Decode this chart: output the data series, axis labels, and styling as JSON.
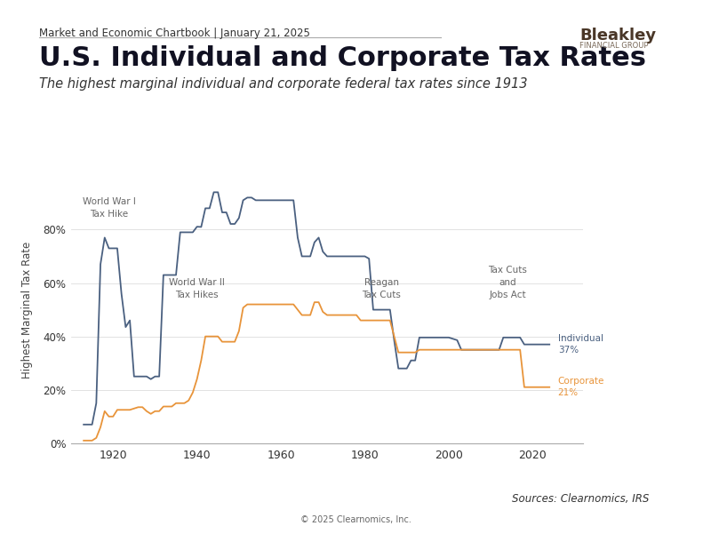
{
  "title": "U.S. Individual and Corporate Tax Rates",
  "subtitle": "The highest marginal individual and corporate federal tax rates since 1913",
  "header": "Market and Economic Chartbook | January 21, 2025",
  "footer_source": "Sources: Clearnomics, IRS",
  "footer_copy": "© 2025 Clearnomics, Inc.",
  "ylabel": "Highest Marginal Tax Rate",
  "individual_color": "#4a6080",
  "corporate_color": "#e8943a",
  "background_color": "#ffffff",
  "individual_data": [
    [
      1913,
      7
    ],
    [
      1914,
      7
    ],
    [
      1915,
      7
    ],
    [
      1916,
      15
    ],
    [
      1917,
      67
    ],
    [
      1918,
      77
    ],
    [
      1919,
      73
    ],
    [
      1920,
      73
    ],
    [
      1921,
      73
    ],
    [
      1922,
      56
    ],
    [
      1923,
      43.5
    ],
    [
      1924,
      46
    ],
    [
      1925,
      25
    ],
    [
      1926,
      25
    ],
    [
      1927,
      25
    ],
    [
      1928,
      25
    ],
    [
      1929,
      24
    ],
    [
      1930,
      25
    ],
    [
      1931,
      25
    ],
    [
      1932,
      63
    ],
    [
      1933,
      63
    ],
    [
      1934,
      63
    ],
    [
      1935,
      63
    ],
    [
      1936,
      79
    ],
    [
      1937,
      79
    ],
    [
      1938,
      79
    ],
    [
      1939,
      79
    ],
    [
      1940,
      81.1
    ],
    [
      1941,
      81
    ],
    [
      1942,
      88
    ],
    [
      1943,
      88
    ],
    [
      1944,
      94
    ],
    [
      1945,
      94
    ],
    [
      1946,
      86.45
    ],
    [
      1947,
      86.45
    ],
    [
      1948,
      82.13
    ],
    [
      1949,
      82.13
    ],
    [
      1950,
      84.36
    ],
    [
      1951,
      91
    ],
    [
      1952,
      92
    ],
    [
      1953,
      92
    ],
    [
      1954,
      91
    ],
    [
      1955,
      91
    ],
    [
      1956,
      91
    ],
    [
      1957,
      91
    ],
    [
      1958,
      91
    ],
    [
      1959,
      91
    ],
    [
      1960,
      91
    ],
    [
      1961,
      91
    ],
    [
      1962,
      91
    ],
    [
      1963,
      91
    ],
    [
      1964,
      77
    ],
    [
      1965,
      70
    ],
    [
      1966,
      70
    ],
    [
      1967,
      70
    ],
    [
      1968,
      75.25
    ],
    [
      1969,
      77
    ],
    [
      1970,
      71.75
    ],
    [
      1971,
      70
    ],
    [
      1972,
      70
    ],
    [
      1973,
      70
    ],
    [
      1974,
      70
    ],
    [
      1975,
      70
    ],
    [
      1976,
      70
    ],
    [
      1977,
      70
    ],
    [
      1978,
      70
    ],
    [
      1979,
      70
    ],
    [
      1980,
      70
    ],
    [
      1981,
      69.125
    ],
    [
      1982,
      50
    ],
    [
      1983,
      50
    ],
    [
      1984,
      50
    ],
    [
      1985,
      50
    ],
    [
      1986,
      50
    ],
    [
      1987,
      38.5
    ],
    [
      1988,
      28
    ],
    [
      1989,
      28
    ],
    [
      1990,
      28
    ],
    [
      1991,
      31
    ],
    [
      1992,
      31
    ],
    [
      1993,
      39.6
    ],
    [
      1994,
      39.6
    ],
    [
      1995,
      39.6
    ],
    [
      1996,
      39.6
    ],
    [
      1997,
      39.6
    ],
    [
      1998,
      39.6
    ],
    [
      1999,
      39.6
    ],
    [
      2000,
      39.6
    ],
    [
      2001,
      39.1
    ],
    [
      2002,
      38.6
    ],
    [
      2003,
      35
    ],
    [
      2004,
      35
    ],
    [
      2005,
      35
    ],
    [
      2006,
      35
    ],
    [
      2007,
      35
    ],
    [
      2008,
      35
    ],
    [
      2009,
      35
    ],
    [
      2010,
      35
    ],
    [
      2011,
      35
    ],
    [
      2012,
      35
    ],
    [
      2013,
      39.6
    ],
    [
      2014,
      39.6
    ],
    [
      2015,
      39.6
    ],
    [
      2016,
      39.6
    ],
    [
      2017,
      39.6
    ],
    [
      2018,
      37
    ],
    [
      2019,
      37
    ],
    [
      2020,
      37
    ],
    [
      2021,
      37
    ],
    [
      2022,
      37
    ],
    [
      2023,
      37
    ],
    [
      2024,
      37
    ]
  ],
  "corporate_data": [
    [
      1913,
      1
    ],
    [
      1914,
      1
    ],
    [
      1915,
      1
    ],
    [
      1916,
      2
    ],
    [
      1917,
      6
    ],
    [
      1918,
      12
    ],
    [
      1919,
      10
    ],
    [
      1920,
      10
    ],
    [
      1921,
      12.5
    ],
    [
      1922,
      12.5
    ],
    [
      1923,
      12.5
    ],
    [
      1924,
      12.5
    ],
    [
      1925,
      13
    ],
    [
      1926,
      13.5
    ],
    [
      1927,
      13.5
    ],
    [
      1928,
      12
    ],
    [
      1929,
      11
    ],
    [
      1930,
      12
    ],
    [
      1931,
      12
    ],
    [
      1932,
      13.75
    ],
    [
      1933,
      13.75
    ],
    [
      1934,
      13.75
    ],
    [
      1935,
      15
    ],
    [
      1936,
      15
    ],
    [
      1937,
      15
    ],
    [
      1938,
      16
    ],
    [
      1939,
      19
    ],
    [
      1940,
      24
    ],
    [
      1941,
      31
    ],
    [
      1942,
      40
    ],
    [
      1943,
      40
    ],
    [
      1944,
      40
    ],
    [
      1945,
      40
    ],
    [
      1946,
      38
    ],
    [
      1947,
      38
    ],
    [
      1948,
      38
    ],
    [
      1949,
      38
    ],
    [
      1950,
      42
    ],
    [
      1951,
      50.75
    ],
    [
      1952,
      52
    ],
    [
      1953,
      52
    ],
    [
      1954,
      52
    ],
    [
      1955,
      52
    ],
    [
      1956,
      52
    ],
    [
      1957,
      52
    ],
    [
      1958,
      52
    ],
    [
      1959,
      52
    ],
    [
      1960,
      52
    ],
    [
      1961,
      52
    ],
    [
      1962,
      52
    ],
    [
      1963,
      52
    ],
    [
      1964,
      50
    ],
    [
      1965,
      48
    ],
    [
      1966,
      48
    ],
    [
      1967,
      48
    ],
    [
      1968,
      52.8
    ],
    [
      1969,
      52.8
    ],
    [
      1970,
      49.2
    ],
    [
      1971,
      48
    ],
    [
      1972,
      48
    ],
    [
      1973,
      48
    ],
    [
      1974,
      48
    ],
    [
      1975,
      48
    ],
    [
      1976,
      48
    ],
    [
      1977,
      48
    ],
    [
      1978,
      48
    ],
    [
      1979,
      46
    ],
    [
      1980,
      46
    ],
    [
      1981,
      46
    ],
    [
      1982,
      46
    ],
    [
      1983,
      46
    ],
    [
      1984,
      46
    ],
    [
      1985,
      46
    ],
    [
      1986,
      46
    ],
    [
      1987,
      40
    ],
    [
      1988,
      34
    ],
    [
      1989,
      34
    ],
    [
      1990,
      34
    ],
    [
      1991,
      34
    ],
    [
      1992,
      34
    ],
    [
      1993,
      35
    ],
    [
      1994,
      35
    ],
    [
      1995,
      35
    ],
    [
      1996,
      35
    ],
    [
      1997,
      35
    ],
    [
      1998,
      35
    ],
    [
      1999,
      35
    ],
    [
      2000,
      35
    ],
    [
      2001,
      35
    ],
    [
      2002,
      35
    ],
    [
      2003,
      35
    ],
    [
      2004,
      35
    ],
    [
      2005,
      35
    ],
    [
      2006,
      35
    ],
    [
      2007,
      35
    ],
    [
      2008,
      35
    ],
    [
      2009,
      35
    ],
    [
      2010,
      35
    ],
    [
      2011,
      35
    ],
    [
      2012,
      35
    ],
    [
      2013,
      35
    ],
    [
      2014,
      35
    ],
    [
      2015,
      35
    ],
    [
      2016,
      35
    ],
    [
      2017,
      35
    ],
    [
      2018,
      21
    ],
    [
      2019,
      21
    ],
    [
      2020,
      21
    ],
    [
      2021,
      21
    ],
    [
      2022,
      21
    ],
    [
      2023,
      21
    ],
    [
      2024,
      21
    ]
  ]
}
